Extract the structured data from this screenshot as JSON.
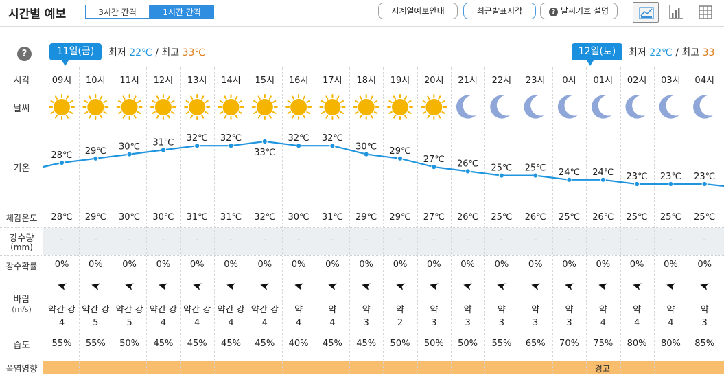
{
  "header": {
    "title": "시간별 예보",
    "interval_tabs": [
      {
        "label": "3시간 간격",
        "selected": false
      },
      {
        "label": "1시간 간격",
        "selected": true
      }
    ],
    "buttons": {
      "guide": "시계열예보안내",
      "recent": "최근발표시각",
      "symbols": "날씨기호 설명"
    },
    "view_icons": [
      "line-chart-icon",
      "bar-chart-icon",
      "table-icon"
    ]
  },
  "help_symbol": "?",
  "days": [
    {
      "label": "11일(금)",
      "min_label": "최저",
      "min": "22℃",
      "max_label": "최고",
      "max": "33℃"
    },
    {
      "label": "12일(토)",
      "min_label": "최저",
      "min": "22℃",
      "max_label": "최고",
      "max": "33"
    }
  ],
  "row_labels": {
    "time": "시각",
    "weather": "날씨",
    "temp": "기온",
    "feels": "체감온도",
    "precip": "강수량",
    "precip_unit": "(mm)",
    "prob": "강수확률",
    "wind": "바람",
    "wind_unit": "(m/s)",
    "humidity": "습도",
    "heat": "폭염영향"
  },
  "colors": {
    "accent": "#2f8ee0",
    "temp_line": "#1f95e0",
    "sun": "#f5b400",
    "moon": "#8fa6d8",
    "heat_band": "#f9be6d"
  },
  "hours": [
    {
      "time": "09시",
      "icon": "sun",
      "temp": "28℃",
      "feels": "28℃",
      "precip": "-",
      "prob": "0%",
      "wind_dir": "➤",
      "wind_desc": "약간 강",
      "wind_speed": "4",
      "humidity": "55%"
    },
    {
      "time": "10시",
      "icon": "sun",
      "temp": "29℃",
      "feels": "29℃",
      "precip": "-",
      "prob": "0%",
      "wind_dir": "➤",
      "wind_desc": "약간 강",
      "wind_speed": "5",
      "humidity": "55%"
    },
    {
      "time": "11시",
      "icon": "sun",
      "temp": "30℃",
      "feels": "30℃",
      "precip": "-",
      "prob": "0%",
      "wind_dir": "➤",
      "wind_desc": "약간 강",
      "wind_speed": "5",
      "humidity": "50%"
    },
    {
      "time": "12시",
      "icon": "sun",
      "temp": "31℃",
      "feels": "30℃",
      "precip": "-",
      "prob": "0%",
      "wind_dir": "➤",
      "wind_desc": "약간 강",
      "wind_speed": "4",
      "humidity": "45%"
    },
    {
      "time": "13시",
      "icon": "sun",
      "temp": "32℃",
      "feels": "31℃",
      "precip": "-",
      "prob": "0%",
      "wind_dir": "➤",
      "wind_desc": "약간 강",
      "wind_speed": "4",
      "humidity": "45%"
    },
    {
      "time": "14시",
      "icon": "sun",
      "temp": "32℃",
      "feels": "31℃",
      "precip": "-",
      "prob": "0%",
      "wind_dir": "➤",
      "wind_desc": "약간 강",
      "wind_speed": "4",
      "humidity": "45%"
    },
    {
      "time": "15시",
      "icon": "sun",
      "temp": "33℃",
      "feels": "32℃",
      "precip": "-",
      "prob": "0%",
      "wind_dir": "➤",
      "wind_desc": "약간 강",
      "wind_speed": "4",
      "humidity": "45%"
    },
    {
      "time": "16시",
      "icon": "sun",
      "temp": "32℃",
      "feels": "30℃",
      "precip": "-",
      "prob": "0%",
      "wind_dir": "➤",
      "wind_desc": "약",
      "wind_speed": "4",
      "humidity": "40%"
    },
    {
      "time": "17시",
      "icon": "sun",
      "temp": "32℃",
      "feels": "31℃",
      "precip": "-",
      "prob": "0%",
      "wind_dir": "➤",
      "wind_desc": "약",
      "wind_speed": "4",
      "humidity": "45%"
    },
    {
      "time": "18시",
      "icon": "sun",
      "temp": "30℃",
      "feels": "29℃",
      "precip": "-",
      "prob": "0%",
      "wind_dir": "➤",
      "wind_desc": "약",
      "wind_speed": "3",
      "humidity": "45%"
    },
    {
      "time": "19시",
      "icon": "sun",
      "temp": "29℃",
      "feels": "29℃",
      "precip": "-",
      "prob": "0%",
      "wind_dir": "➤",
      "wind_desc": "약",
      "wind_speed": "2",
      "humidity": "50%"
    },
    {
      "time": "20시",
      "icon": "sun",
      "temp": "27℃",
      "feels": "27℃",
      "precip": "-",
      "prob": "0%",
      "wind_dir": "➤",
      "wind_desc": "약",
      "wind_speed": "3",
      "humidity": "50%"
    },
    {
      "time": "21시",
      "icon": "moon",
      "temp": "26℃",
      "feels": "26℃",
      "precip": "-",
      "prob": "0%",
      "wind_dir": "➤",
      "wind_desc": "약",
      "wind_speed": "3",
      "humidity": "50%"
    },
    {
      "time": "22시",
      "icon": "moon",
      "temp": "25℃",
      "feels": "25℃",
      "precip": "-",
      "prob": "0%",
      "wind_dir": "➤",
      "wind_desc": "약",
      "wind_speed": "3",
      "humidity": "55%"
    },
    {
      "time": "23시",
      "icon": "moon",
      "temp": "25℃",
      "feels": "26℃",
      "precip": "-",
      "prob": "0%",
      "wind_dir": "➤",
      "wind_desc": "약",
      "wind_speed": "3",
      "humidity": "65%"
    },
    {
      "time": "0시",
      "icon": "moon",
      "temp": "24℃",
      "feels": "25℃",
      "precip": "-",
      "prob": "0%",
      "wind_dir": "➤",
      "wind_desc": "약",
      "wind_speed": "3",
      "humidity": "70%"
    },
    {
      "time": "01시",
      "icon": "moon",
      "temp": "24℃",
      "feels": "26℃",
      "precip": "-",
      "prob": "0%",
      "wind_dir": "➤",
      "wind_desc": "약",
      "wind_speed": "4",
      "humidity": "75%"
    },
    {
      "time": "02시",
      "icon": "moon",
      "temp": "23℃",
      "feels": "25℃",
      "precip": "-",
      "prob": "0%",
      "wind_dir": "➤",
      "wind_desc": "약",
      "wind_speed": "4",
      "humidity": "80%"
    },
    {
      "time": "03시",
      "icon": "moon",
      "temp": "23℃",
      "feels": "25℃",
      "precip": "-",
      "prob": "0%",
      "wind_dir": "➤",
      "wind_desc": "약",
      "wind_speed": "4",
      "humidity": "80%"
    },
    {
      "time": "04시",
      "icon": "moon",
      "temp": "23℃",
      "feels": "25℃",
      "precip": "-",
      "prob": "0%",
      "wind_dir": "➤",
      "wind_desc": "약",
      "wind_speed": "3",
      "humidity": "85%"
    }
  ],
  "heat_warning": {
    "label": "경고",
    "from_hour": "01시"
  }
}
